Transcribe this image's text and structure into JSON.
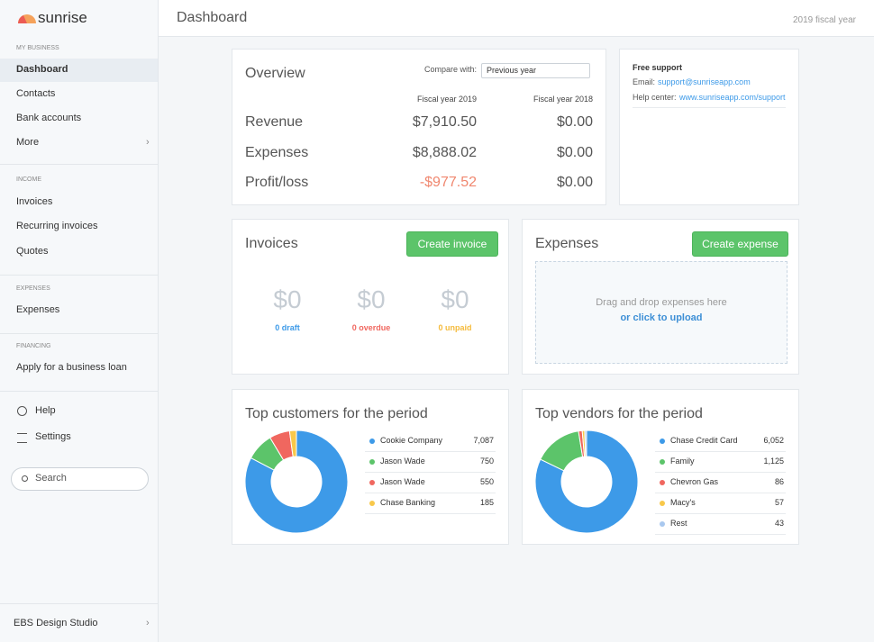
{
  "sidebar": {
    "brand": "sunrise",
    "sections": [
      {
        "heading": "MY BUSINESS",
        "items": [
          "Dashboard",
          "Contacts",
          "Bank accounts",
          "More"
        ]
      },
      {
        "heading": "INCOME",
        "items": [
          "Invoices",
          "Recurring invoices",
          "Quotes"
        ]
      },
      {
        "heading": "EXPENSES",
        "items": [
          "Expenses"
        ]
      },
      {
        "heading": "FINANCING",
        "items": [
          "Apply for a business loan"
        ]
      }
    ],
    "utility": [
      "Help",
      "Settings"
    ],
    "search": "Search",
    "footer": "EBS Design Studio"
  },
  "header": {
    "title": "Dashboard",
    "fiscal_year": "2019 fiscal year"
  },
  "overview": {
    "title": "Overview",
    "compare_label": "Compare with:",
    "compare_value": "Previous year",
    "columns": [
      "Fiscal year 2019",
      "Fiscal year 2018"
    ],
    "rows": [
      [
        "Revenue",
        "$7,910.50",
        "$0.00"
      ],
      [
        "Expenses",
        "$8,888.02",
        "$0.00"
      ],
      [
        "Profit/loss",
        "-$977.52",
        "$0.00"
      ]
    ]
  },
  "support": {
    "title": "Free support",
    "email_label": "Email:",
    "email": "support@sunriseapp.com",
    "help_label": "Help center:",
    "help_url": "www.sunriseapp.com/support"
  },
  "invoices": {
    "title": "Invoices",
    "button": "Create invoice",
    "stats": [
      {
        "amount": "$0",
        "label": "0 draft",
        "color": "#3d9ae8"
      },
      {
        "amount": "$0",
        "label": "0 overdue",
        "color": "#f0675f"
      },
      {
        "amount": "$0",
        "label": "0 unpaid",
        "color": "#f5bb3c"
      }
    ]
  },
  "expenses": {
    "title": "Expenses",
    "button": "Create expense",
    "drop_text": "Drag and drop expenses here",
    "upload_link": "or click to upload"
  },
  "top_customers": {
    "title": "Top customers for the period",
    "items": [
      {
        "name": "Cookie Company",
        "value": 7087,
        "value_label": "7,087",
        "color": "#3d9ae8"
      },
      {
        "name": "Jason Wade",
        "value": 750,
        "value_label": "750",
        "color": "#5cc46a"
      },
      {
        "name": "Jason Wade",
        "value": 550,
        "value_label": "550",
        "color": "#f0675f"
      },
      {
        "name": "Chase Banking",
        "value": 185,
        "value_label": "185",
        "color": "#f8c84a"
      }
    ]
  },
  "top_vendors": {
    "title": "Top vendors for the period",
    "items": [
      {
        "name": "Chase Credit Card",
        "value": 6052,
        "value_label": "6,052",
        "color": "#3d9ae8"
      },
      {
        "name": "Family",
        "value": 1125,
        "value_label": "1,125",
        "color": "#5cc46a"
      },
      {
        "name": "Chevron Gas",
        "value": 86,
        "value_label": "86",
        "color": "#f0675f"
      },
      {
        "name": "Macy's",
        "value": 57,
        "value_label": "57",
        "color": "#f8c84a"
      },
      {
        "name": "Rest",
        "value": 43,
        "value_label": "43",
        "color": "#a9c8ef"
      }
    ]
  }
}
